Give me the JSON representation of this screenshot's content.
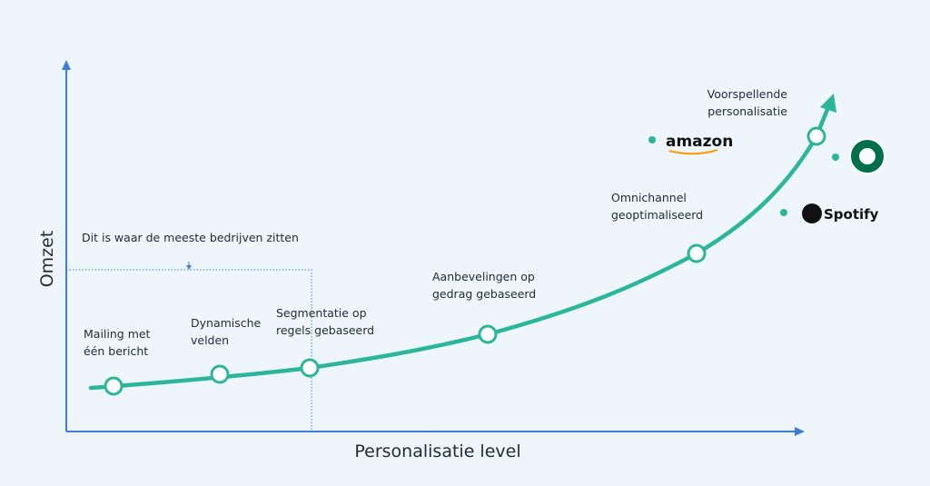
{
  "axes": {
    "y_label": "Omzet",
    "x_label": "Personalisatie level"
  },
  "annotation": "Dit is waar de meeste bedrijven zitten",
  "nodes": [
    {
      "lines": [
        "Mailing met",
        "één bericht"
      ]
    },
    {
      "lines": [
        "Dynamische",
        "velden"
      ]
    },
    {
      "lines": [
        "Segmentatie op",
        "regels gebaseerd"
      ]
    },
    {
      "lines": [
        "Aanbevelingen op",
        "gedrag gebaseerd"
      ]
    },
    {
      "lines": [
        "Omnichannel",
        "geoptimaliseerd"
      ]
    },
    {
      "lines": [
        "Voorspellende",
        "personalisatie"
      ]
    }
  ],
  "brands": {
    "amazon": "amazon",
    "spotify": "Spotify"
  }
}
